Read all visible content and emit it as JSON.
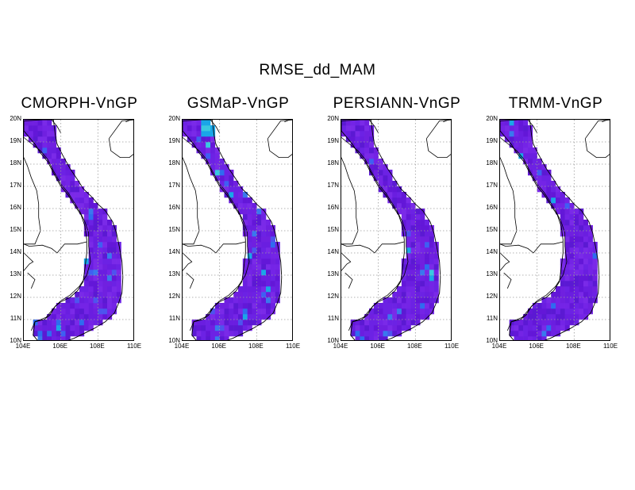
{
  "title": "RMSE_dd_MAM",
  "panels": [
    {
      "title": "CMORPH-VnGP",
      "product": "CMORPH"
    },
    {
      "title": "GSMaP-VnGP",
      "product": "GSMaP"
    },
    {
      "title": "PERSIANN-VnGP",
      "product": "PERSIANN"
    },
    {
      "title": "TRMM-VnGP",
      "product": "TRMM"
    }
  ],
  "map": {
    "lon_range": [
      104,
      110
    ],
    "lat_range": [
      10,
      20
    ],
    "x_ticks": [
      "104E",
      "106E",
      "108E",
      "110E"
    ],
    "y_ticks": [
      "20N",
      "19N",
      "18N",
      "17N",
      "16N",
      "15N",
      "14N",
      "13N",
      "12N",
      "11N",
      "10N"
    ],
    "grid": "dotted",
    "land_color": "#6a1ee0",
    "accent_colors": [
      "#2f6bf0",
      "#1aa6e8",
      "#39c9e0"
    ]
  }
}
